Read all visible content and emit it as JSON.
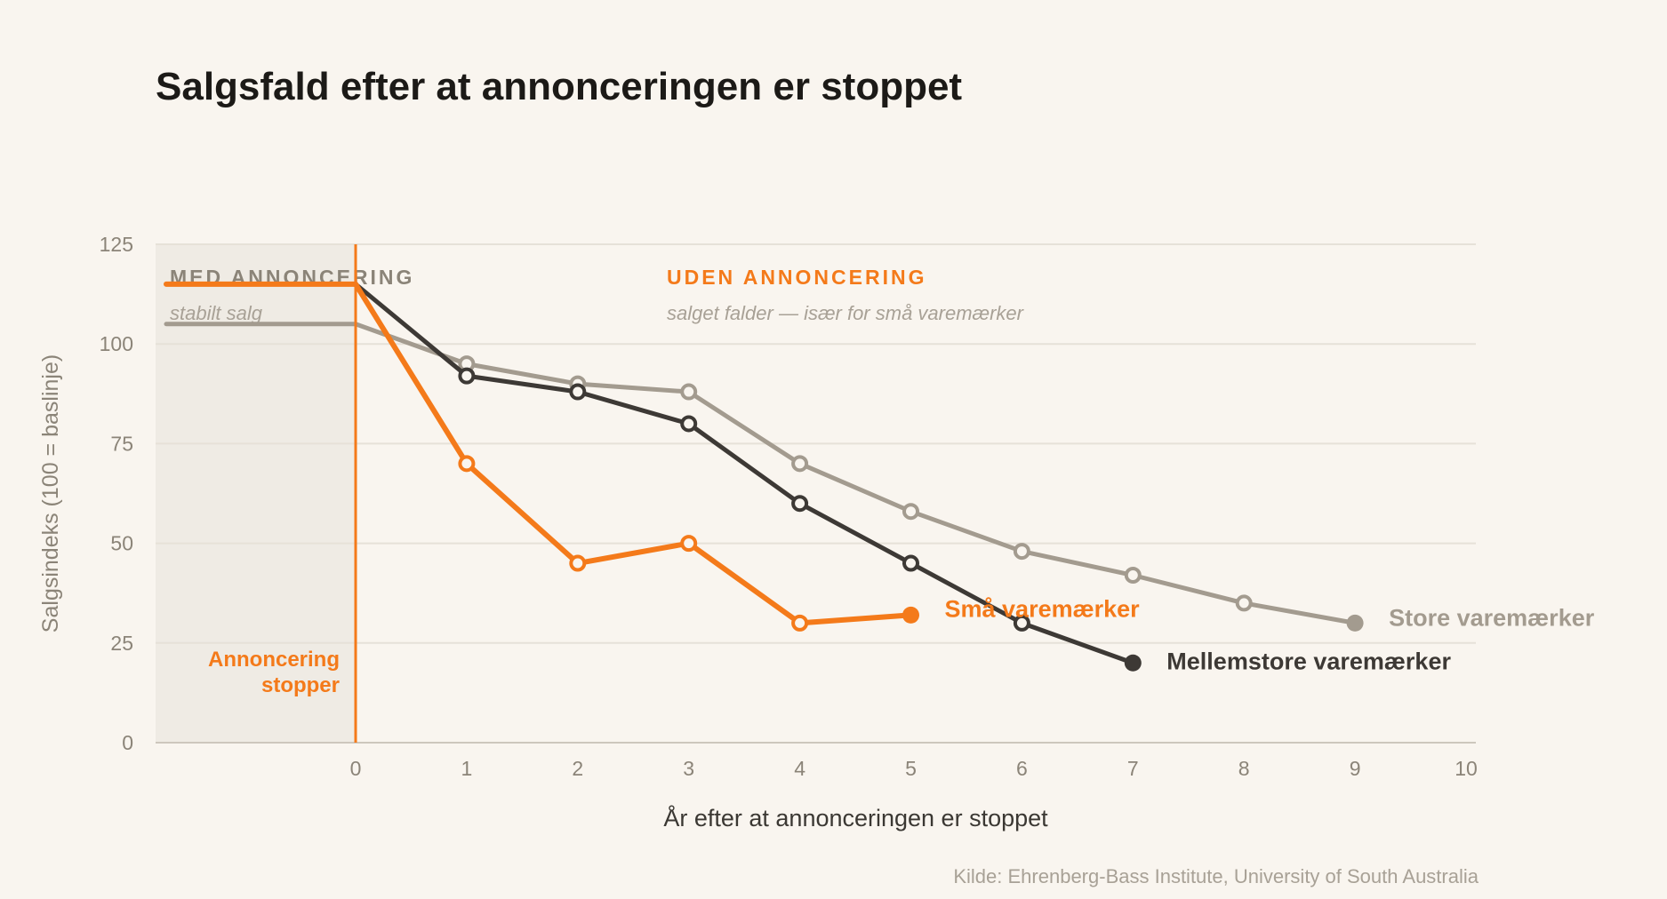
{
  "chart_data": {
    "type": "line",
    "title": "Salgsfald efter at annonceringen er stoppet",
    "xlabel": "År efter at annonceringen er stoppet",
    "ylabel": "Salgsindeks (100 = baslinje)",
    "xlim": [
      -1.8,
      10
    ],
    "ylim": [
      0,
      125
    ],
    "x_ticks": [
      "0",
      "1",
      "2",
      "3",
      "4",
      "5",
      "6",
      "7",
      "8",
      "9",
      "10"
    ],
    "y_ticks": [
      "0",
      "25",
      "50",
      "75",
      "100",
      "125"
    ],
    "grid": "horizontal",
    "zones": {
      "before": {
        "heading": "MED ANNONCERING",
        "subtitle": "stabilt salg",
        "from": -1.8,
        "to": 0
      },
      "after": {
        "heading": "UDEN ANNONCERING",
        "subtitle": "salget falder — især for små varemærker"
      }
    },
    "event": {
      "x": 0,
      "label_line1": "Annoncering",
      "label_line2": "stopper"
    },
    "series": [
      {
        "name": "Store varemærker",
        "color": "#a39b8f",
        "baseline": 105,
        "x": [
          0,
          1,
          2,
          3,
          4,
          5,
          6,
          7,
          8,
          9
        ],
        "values": [
          105,
          95,
          90,
          88,
          70,
          58,
          48,
          42,
          35,
          30
        ]
      },
      {
        "name": "Mellemstore varemærker",
        "color": "#3d3935",
        "baseline": 115,
        "x": [
          0,
          1,
          2,
          3,
          4,
          5,
          6,
          7
        ],
        "values": [
          115,
          92,
          88,
          80,
          60,
          45,
          30,
          20
        ]
      },
      {
        "name": "Små varemærker",
        "color": "#f47a1a",
        "baseline": 115,
        "x": [
          0,
          1,
          2,
          3,
          4,
          5
        ],
        "values": [
          115,
          70,
          45,
          50,
          30,
          32
        ]
      }
    ],
    "source": "Kilde: Ehrenberg-Bass Institute, University of South Australia"
  },
  "colors": {
    "background": "#f9f5ef",
    "shaded_zone": "#efebe4",
    "grid": "#e6e1d8",
    "axis": "#cdc7bd",
    "accent": "#f47a1a"
  }
}
